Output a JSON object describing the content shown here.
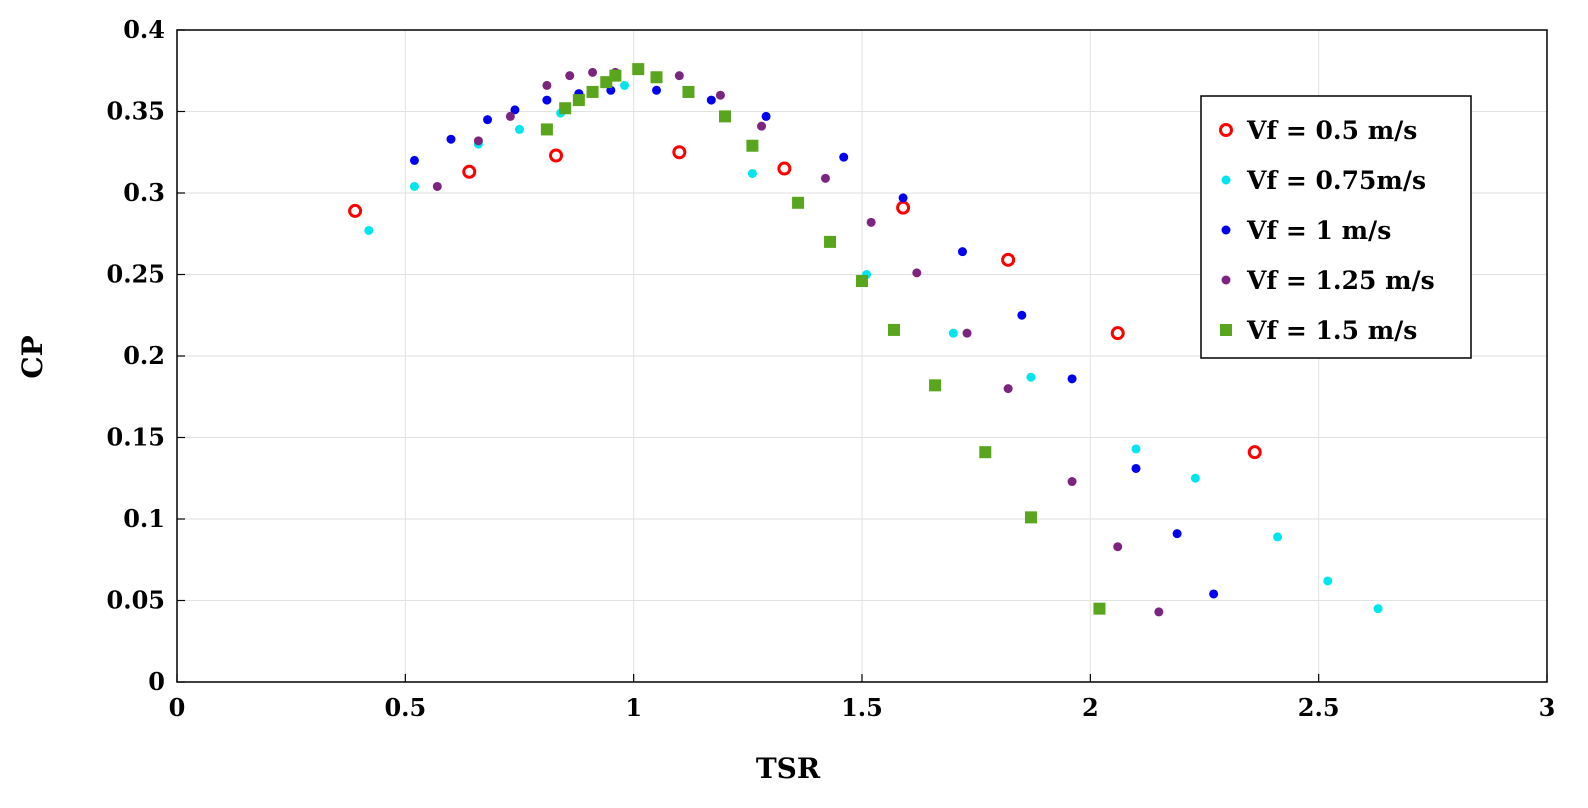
{
  "chart_data": {
    "type": "scatter",
    "xlabel": "TSR",
    "ylabel": "CP",
    "xlim": [
      0,
      3
    ],
    "ylim": [
      0,
      0.4
    ],
    "xticks": [
      "0",
      "0.5",
      "1",
      "1.5",
      "2",
      "2.5",
      "3"
    ],
    "yticks": [
      "0",
      "0.05",
      "0.1",
      "0.15",
      "0.2",
      "0.25",
      "0.3",
      "0.35",
      "0.4"
    ],
    "grid": true,
    "legend_position": "top-right",
    "series": [
      {
        "name": "Vf = 0.5 m/s",
        "color": "#ff0000",
        "marker": "open-circle",
        "x": [
          0.39,
          0.64,
          0.83,
          1.1,
          1.33,
          1.59,
          1.82,
          2.06,
          2.36
        ],
        "y": [
          0.289,
          0.313,
          0.323,
          0.325,
          0.315,
          0.291,
          0.259,
          0.214,
          0.141
        ]
      },
      {
        "name": "Vf = 0.75m/s",
        "color": "#00e5ee",
        "marker": "dot",
        "x": [
          0.42,
          0.52,
          0.66,
          0.75,
          0.84,
          0.98,
          1.26,
          1.51,
          1.7,
          1.87,
          2.1,
          2.23,
          2.41,
          2.52,
          2.63
        ],
        "y": [
          0.277,
          0.304,
          0.33,
          0.339,
          0.349,
          0.366,
          0.312,
          0.25,
          0.214,
          0.187,
          0.143,
          0.125,
          0.089,
          0.062,
          0.045
        ]
      },
      {
        "name": "Vf = 1 m/s",
        "color": "#0000ee",
        "marker": "dot",
        "x": [
          0.52,
          0.6,
          0.68,
          0.74,
          0.81,
          0.88,
          0.95,
          1.05,
          1.17,
          1.29,
          1.46,
          1.59,
          1.72,
          1.85,
          1.96,
          2.1,
          2.19,
          2.27
        ],
        "y": [
          0.32,
          0.333,
          0.345,
          0.351,
          0.357,
          0.361,
          0.363,
          0.363,
          0.357,
          0.347,
          0.322,
          0.297,
          0.264,
          0.225,
          0.186,
          0.131,
          0.091,
          0.054
        ]
      },
      {
        "name": "Vf = 1.25 m/s",
        "color": "#7b2580",
        "marker": "dot",
        "x": [
          0.57,
          0.66,
          0.73,
          0.81,
          0.86,
          0.91,
          0.96,
          1.1,
          1.19,
          1.28,
          1.42,
          1.52,
          1.62,
          1.73,
          1.82,
          1.96,
          2.06,
          2.15
        ],
        "y": [
          0.304,
          0.332,
          0.347,
          0.366,
          0.372,
          0.374,
          0.374,
          0.372,
          0.36,
          0.341,
          0.309,
          0.282,
          0.251,
          0.214,
          0.18,
          0.123,
          0.083,
          0.043
        ]
      },
      {
        "name": "Vf = 1.5 m/s",
        "color": "#5aa51e",
        "marker": "square",
        "x": [
          0.81,
          0.85,
          0.88,
          0.91,
          0.94,
          0.96,
          1.01,
          1.05,
          1.12,
          1.2,
          1.26,
          1.36,
          1.43,
          1.5,
          1.57,
          1.66,
          1.77,
          1.87,
          2.02
        ],
        "y": [
          0.339,
          0.352,
          0.357,
          0.362,
          0.368,
          0.372,
          0.376,
          0.371,
          0.362,
          0.347,
          0.329,
          0.294,
          0.27,
          0.246,
          0.216,
          0.182,
          0.141,
          0.101,
          0.045
        ]
      }
    ]
  }
}
